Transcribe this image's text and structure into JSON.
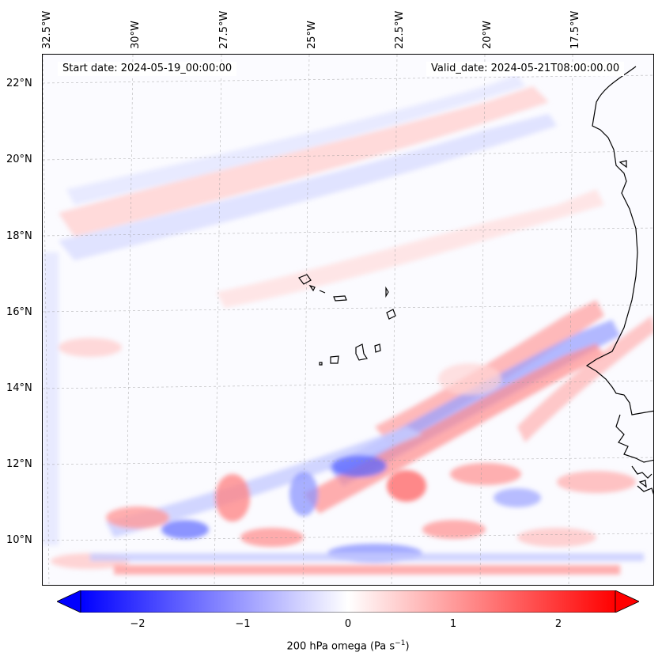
{
  "map": {
    "start_date": "Start date: 2024-05-19_00:00:00",
    "valid_date": "Valid_date: 2024-05-21T08:00:00.00",
    "lon_labels": [
      "32.5°W",
      "30°W",
      "27.5°W",
      "25°W",
      "22.5°W",
      "20°W",
      "17.5°W"
    ],
    "lat_labels": [
      "22°N",
      "20°N",
      "18°N",
      "16°N",
      "14°N",
      "12°N",
      "10°N"
    ],
    "field": "200 hPa omega",
    "colormap": "bwr",
    "colors": {
      "negative": "#0000ff",
      "zero": "#ffffff",
      "positive": "#ff0000",
      "coast": "#000000"
    }
  },
  "colorbar": {
    "title": "200 hPa omega (Pa s",
    "title_unit_sup": "−1",
    "title_close": ")",
    "ticks": [
      "−2",
      "−1",
      "0",
      "1",
      "2"
    ],
    "range": [
      -2.75,
      2.75
    ],
    "extend": "both"
  }
}
